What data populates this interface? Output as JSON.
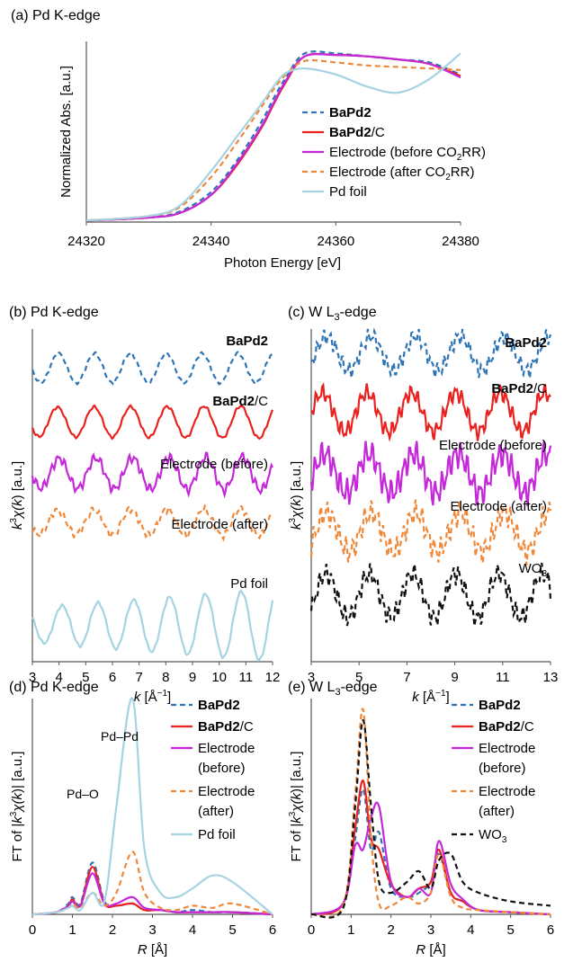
{
  "chart_data": [
    {
      "id": "a",
      "type": "line",
      "title": "(a) Pd K-edge",
      "xlabel": "Photon Energy [eV]",
      "ylabel": "Normalized Abs. [a.u.]",
      "xticks": [
        "24320",
        "24340",
        "24360",
        "24380"
      ],
      "xlim": [
        24320,
        24380
      ],
      "ylim": [
        0,
        1.2
      ],
      "grid": false,
      "legend_position": "right",
      "series": [
        {
          "key": "bapd2",
          "name_bold": "BaPd2",
          "name_rest": "",
          "color": "#2f75b5",
          "dash": "dash",
          "x": [
            24320,
            24330,
            24335,
            24340,
            24344,
            24348,
            24350,
            24352,
            24355,
            24360,
            24365,
            24370,
            24375,
            24380
          ],
          "y": [
            0.01,
            0.03,
            0.07,
            0.2,
            0.4,
            0.66,
            0.82,
            0.96,
            1.12,
            1.12,
            1.1,
            1.08,
            1.06,
            0.98
          ]
        },
        {
          "key": "bapd2c",
          "name_bold": "BaPd2",
          "name_rest": "/C",
          "color": "#e8231f",
          "dash": "solid",
          "x": [
            24320,
            24330,
            24335,
            24340,
            24344,
            24348,
            24350,
            24352,
            24355,
            24360,
            24365,
            24370,
            24375,
            24380
          ],
          "y": [
            0.01,
            0.03,
            0.06,
            0.18,
            0.37,
            0.62,
            0.78,
            0.93,
            1.1,
            1.11,
            1.1,
            1.08,
            1.05,
            0.97
          ]
        },
        {
          "key": "before",
          "name_pre": "Electrode (before CO",
          "name_sub": "2",
          "name_post": "RR)",
          "color": "#c428d8",
          "dash": "solid",
          "x": [
            24320,
            24330,
            24335,
            24340,
            24344,
            24348,
            24350,
            24352,
            24355,
            24360,
            24365,
            24370,
            24375,
            24380
          ],
          "y": [
            0.01,
            0.03,
            0.06,
            0.18,
            0.38,
            0.63,
            0.79,
            0.94,
            1.1,
            1.11,
            1.1,
            1.08,
            1.05,
            0.96
          ]
        },
        {
          "key": "after",
          "name_pre": "Electrode (after CO",
          "name_sub": "2",
          "name_post": "RR)",
          "color": "#f0883a",
          "dash": "dash",
          "x": [
            24320,
            24330,
            24335,
            24340,
            24344,
            24348,
            24350,
            24352,
            24355,
            24360,
            24365,
            24370,
            24375,
            24380
          ],
          "y": [
            0.01,
            0.04,
            0.1,
            0.3,
            0.52,
            0.76,
            0.88,
            0.98,
            1.07,
            1.06,
            1.04,
            1.03,
            1.02,
            1.01
          ]
        },
        {
          "key": "foil",
          "name": "Pd foil",
          "color": "#a6d3e3",
          "dash": "solid",
          "x": [
            24320,
            24330,
            24335,
            24340,
            24344,
            24348,
            24350,
            24352,
            24355,
            24360,
            24365,
            24370,
            24375,
            24380
          ],
          "y": [
            0.01,
            0.04,
            0.11,
            0.34,
            0.56,
            0.78,
            0.9,
            0.99,
            1.02,
            0.98,
            0.9,
            0.86,
            0.95,
            1.12
          ]
        }
      ]
    },
    {
      "id": "b",
      "type": "line",
      "title": "(b) Pd K-edge",
      "xlabel_italic": "k",
      "xlabel_rest": " [Å",
      "xlabel_sup": "−1",
      "xlabel_end": "]",
      "ylabel_italic": "k",
      "ylabel_sup": "3",
      "ylabel_chi": "χ(",
      "ylabel_k": "k",
      "ylabel_end": ") [a.u.]",
      "xlim": [
        3,
        12
      ],
      "xticks": [
        "3",
        "4",
        "5",
        "6",
        "7",
        "8",
        "9",
        "10",
        "11",
        "12"
      ],
      "grid": false,
      "legend_position": "inline",
      "series": [
        {
          "key": "bapd2",
          "label_bold": "BaPd2",
          "label_rest": "",
          "color": "#2f75b5",
          "dash": "dash",
          "offset": 4.2,
          "amp": 0.3,
          "freq": 4.7,
          "phase": 0.3,
          "growth": 0.0,
          "noise": 0.02
        },
        {
          "key": "bapd2c",
          "label_bold": "BaPd2",
          "label_rest": "/C",
          "color": "#e8231f",
          "dash": "solid",
          "offset": 3.1,
          "amp": 0.3,
          "freq": 4.6,
          "phase": 0.4,
          "growth": 0.1,
          "noise": 0.02
        },
        {
          "key": "before",
          "label_bold": "",
          "label_rest": "Electrode (before)",
          "color": "#c428d8",
          "dash": "solid",
          "offset": 2.05,
          "amp": 0.3,
          "freq": 4.6,
          "phase": 0.35,
          "growth": 0.15,
          "noise": 0.07
        },
        {
          "key": "after",
          "label_bold": "",
          "label_rest": "Electrode (after)",
          "color": "#f0883a",
          "dash": "dash",
          "offset": 1.05,
          "amp": 0.25,
          "freq": 4.6,
          "phase": 0.4,
          "growth": 0.1,
          "noise": 0.05
        },
        {
          "key": "foil",
          "label_bold": "",
          "label_rest": "Pd foil",
          "color": "#a6d3e3",
          "dash": "solid",
          "offset": -1.05,
          "amp": 0.35,
          "freq": 4.7,
          "phase": 0.2,
          "growth": 1.1,
          "noise": 0.02
        }
      ]
    },
    {
      "id": "c",
      "type": "line",
      "title_pre": "(c) W L",
      "title_sub": "3",
      "title_post": "-edge",
      "xlabel_italic": "k",
      "xlabel_rest": " [Å",
      "xlabel_sup": "−1",
      "xlabel_end": "]",
      "xlim": [
        3,
        13
      ],
      "xticks": [
        "3",
        "5",
        "7",
        "9",
        "11",
        "13"
      ],
      "grid": false,
      "legend_position": "inline",
      "series": [
        {
          "key": "bapd2",
          "label_bold": "BaPd2",
          "label_rest": "",
          "color": "#2f75b5",
          "dash": "dash",
          "offset": 4.5,
          "amp": 0.35,
          "freq": 3.4,
          "phase": 0.3,
          "growth": 0.0,
          "noise": 0.12
        },
        {
          "key": "bapd2c",
          "label_bold": "BaPd2",
          "label_rest": "/C",
          "color": "#e8231f",
          "dash": "solid",
          "offset": 3.3,
          "amp": 0.4,
          "freq": 3.4,
          "phase": 0.4,
          "growth": 0.0,
          "noise": 0.12
        },
        {
          "key": "before",
          "label_bold": "",
          "label_rest": "Electrode (before)",
          "color": "#c428d8",
          "dash": "solid",
          "offset": 2.05,
          "amp": 0.4,
          "freq": 3.4,
          "phase": 0.35,
          "growth": 0.0,
          "noise": 0.2
        },
        {
          "key": "after",
          "label_bold": "",
          "label_rest": "Electrode (after)",
          "color": "#f0883a",
          "dash": "dash",
          "offset": 0.85,
          "amp": 0.4,
          "freq": 3.4,
          "phase": 0.3,
          "growth": 0.0,
          "noise": 0.18
        },
        {
          "key": "wo3",
          "label_pre": "WO",
          "label_sub": "3",
          "color": "#111111",
          "dash": "dash",
          "offset": -0.45,
          "amp": 0.45,
          "freq": 3.5,
          "phase": 0.25,
          "growth": 0.0,
          "noise": 0.15
        }
      ]
    },
    {
      "id": "d",
      "type": "line",
      "title": "(d) Pd K-edge",
      "xlabel_italic": "R",
      "xlabel_rest": " [Å]",
      "ylabel_pre": "FT of |",
      "ylabel_k": "k",
      "ylabel_sup": "3",
      "ylabel_chi": "χ(",
      "ylabel_k2": "k",
      "ylabel_end": ")| [a.u.]",
      "xlim": [
        0,
        6
      ],
      "ylim": [
        0,
        1.0
      ],
      "xticks": [
        "0",
        "1",
        "2",
        "3",
        "4",
        "5",
        "6"
      ],
      "grid": false,
      "legend_position": "right",
      "annotations": [
        "Pd–O",
        "Pd–Pd"
      ],
      "series": [
        {
          "key": "bapd2",
          "name_bold": "BaPd2",
          "name_rest": "",
          "color": "#2f75b5",
          "dash": "dash",
          "x": [
            0,
            0.6,
            0.9,
            1.0,
            1.2,
            1.5,
            1.8,
            2.1,
            2.5,
            2.8,
            3.2,
            3.6,
            4.0,
            4.5,
            5.0,
            6.0
          ],
          "y": [
            0,
            0.01,
            0.05,
            0.08,
            0.05,
            0.24,
            0.06,
            0.04,
            0.05,
            0.02,
            0.02,
            0.01,
            0.02,
            0.01,
            0.01,
            0
          ]
        },
        {
          "key": "bapd2c",
          "name_bold": "BaPd2",
          "name_rest": "/C",
          "color": "#e8231f",
          "dash": "solid",
          "x": [
            0,
            0.6,
            0.9,
            1.0,
            1.2,
            1.5,
            1.8,
            2.1,
            2.5,
            2.8,
            3.2,
            3.6,
            4.0,
            4.5,
            5.0,
            6.0
          ],
          "y": [
            0,
            0.01,
            0.04,
            0.07,
            0.04,
            0.22,
            0.05,
            0.04,
            0.05,
            0.02,
            0.02,
            0.01,
            0.01,
            0.01,
            0.01,
            0
          ]
        },
        {
          "key": "before",
          "name_line1": "Electrode",
          "name_line2": "(before)",
          "color": "#c428d8",
          "dash": "solid",
          "x": [
            0,
            0.6,
            0.9,
            1.0,
            1.2,
            1.5,
            1.8,
            2.1,
            2.5,
            2.8,
            3.2,
            3.6,
            4.0,
            4.5,
            5.0,
            6.0
          ],
          "y": [
            0,
            0.01,
            0.04,
            0.06,
            0.04,
            0.19,
            0.05,
            0.05,
            0.08,
            0.03,
            0.02,
            0.01,
            0.01,
            0.01,
            0.01,
            0
          ]
        },
        {
          "key": "after",
          "name_line1": "Electrode",
          "name_line2": "(after)",
          "color": "#f0883a",
          "dash": "dash",
          "x": [
            0,
            0.6,
            0.9,
            1.0,
            1.2,
            1.5,
            1.8,
            2.1,
            2.5,
            2.8,
            3.2,
            3.6,
            4.0,
            4.5,
            5.0,
            6.0
          ],
          "y": [
            0,
            0.01,
            0.03,
            0.05,
            0.03,
            0.1,
            0.04,
            0.1,
            0.29,
            0.1,
            0.03,
            0.02,
            0.04,
            0.03,
            0.05,
            0
          ]
        },
        {
          "key": "foil",
          "name": "Pd foil",
          "color": "#a6d3e3",
          "dash": "solid",
          "x": [
            0,
            0.6,
            0.9,
            1.0,
            1.2,
            1.5,
            1.8,
            2.1,
            2.5,
            2.8,
            3.2,
            3.6,
            4.0,
            4.5,
            5.0,
            6.0
          ],
          "y": [
            0,
            0.01,
            0.03,
            0.04,
            0.02,
            0.1,
            0.06,
            0.5,
            1.0,
            0.3,
            0.1,
            0.08,
            0.12,
            0.18,
            0.15,
            0
          ]
        }
      ]
    },
    {
      "id": "e",
      "type": "line",
      "title_pre": "(e) W L",
      "title_sub": "3",
      "title_post": "-edge",
      "xlabel_italic": "R",
      "xlabel_rest": " [Å]",
      "xlim": [
        0,
        6
      ],
      "ylim": [
        0,
        1.0
      ],
      "xticks": [
        "0",
        "1",
        "2",
        "3",
        "4",
        "5",
        "6"
      ],
      "grid": false,
      "legend_position": "right",
      "series": [
        {
          "key": "bapd2",
          "name_bold": "BaPd2",
          "name_rest": "",
          "color": "#2f75b5",
          "dash": "dash",
          "x": [
            0,
            0.8,
            1.1,
            1.3,
            1.5,
            1.7,
            2.0,
            2.4,
            2.7,
            3.0,
            3.2,
            3.5,
            3.8,
            4.2,
            5.0,
            6.0
          ],
          "y": [
            0,
            0.05,
            0.35,
            0.58,
            0.3,
            0.38,
            0.12,
            0.08,
            0.1,
            0.15,
            0.28,
            0.1,
            0.06,
            0.02,
            0.01,
            0
          ]
        },
        {
          "key": "bapd2c",
          "name_bold": "BaPd2",
          "name_rest": "/C",
          "color": "#e8231f",
          "dash": "solid",
          "x": [
            0,
            0.8,
            1.1,
            1.3,
            1.5,
            1.7,
            2.0,
            2.4,
            2.7,
            3.0,
            3.2,
            3.5,
            3.8,
            4.2,
            5.0,
            6.0
          ],
          "y": [
            0,
            0.05,
            0.4,
            0.62,
            0.35,
            0.3,
            0.14,
            0.08,
            0.12,
            0.15,
            0.3,
            0.1,
            0.06,
            0.02,
            0.01,
            0
          ]
        },
        {
          "key": "before",
          "name_line1": "Electrode",
          "name_line2": "(before)",
          "color": "#c428d8",
          "dash": "solid",
          "x": [
            0,
            0.8,
            1.1,
            1.3,
            1.5,
            1.7,
            2.0,
            2.4,
            2.7,
            3.0,
            3.2,
            3.5,
            3.8,
            4.2,
            5.0,
            6.0
          ],
          "y": [
            0,
            0.05,
            0.32,
            0.3,
            0.45,
            0.5,
            0.15,
            0.08,
            0.12,
            0.1,
            0.34,
            0.14,
            0.07,
            0.02,
            0.01,
            0
          ]
        },
        {
          "key": "after",
          "name_line1": "Electrode",
          "name_line2": "(after)",
          "color": "#f0883a",
          "dash": "dash",
          "x": [
            0,
            0.8,
            1.1,
            1.3,
            1.5,
            1.7,
            2.0,
            2.4,
            2.7,
            3.0,
            3.2,
            3.5,
            3.8,
            4.2,
            5.0,
            6.0
          ],
          "y": [
            0,
            0.04,
            0.55,
            0.95,
            0.35,
            0.05,
            0.04,
            0.08,
            0.05,
            0.1,
            0.28,
            0.08,
            0.03,
            0.02,
            0.01,
            0
          ]
        },
        {
          "key": "wo3",
          "name_pre": "WO",
          "name_sub": "3",
          "color": "#111111",
          "dash": "dash",
          "x": [
            0,
            0.8,
            1.1,
            1.3,
            1.5,
            1.7,
            2.0,
            2.4,
            2.7,
            3.0,
            3.2,
            3.5,
            3.8,
            4.2,
            5.0,
            6.0
          ],
          "y": [
            0,
            0.03,
            0.5,
            0.9,
            0.5,
            0.15,
            0.1,
            0.15,
            0.2,
            0.12,
            0.25,
            0.28,
            0.15,
            0.1,
            0.06,
            0.04
          ]
        }
      ]
    }
  ]
}
